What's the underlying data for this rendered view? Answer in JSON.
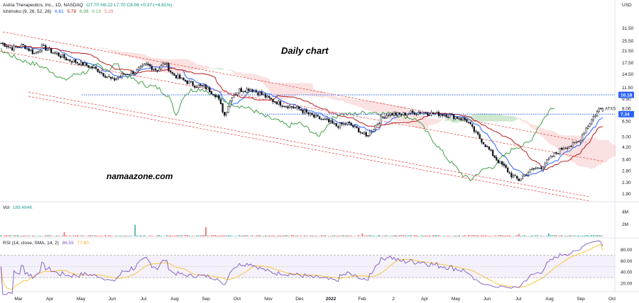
{
  "header": {
    "symbol_line": "Astria Therapeutics, Inc., 1D, NASDAQ",
    "ohlc_text": "O7.70 H8.22 L7.70 C8.06 +0.37 (+4.81%)",
    "ichimoku_label": "Ichimoku (9, 26, 52, 26)",
    "ichimoku_values": [
      "6.61",
      "5.78",
      "8.06",
      "6.19",
      "5.29"
    ],
    "vol_label": "Vol",
    "vol_value": "189.484K",
    "rsi_label": "RSI (14, close, SMA, 14, 2)",
    "rsi_values": [
      "86.55",
      "77.90"
    ]
  },
  "annotations": {
    "chart_title": "Daily chart",
    "watermark": "namaazone.com"
  },
  "colors": {
    "up": "#ffffff",
    "down": "#131722",
    "tenkan": "#2962ff",
    "kijun": "#b71c1c",
    "lagging": "#43a047",
    "cloud_bull": "#a5d6a7",
    "cloud_bear": "#f8c8c8",
    "channel": "#e53935",
    "level": "#2962ff",
    "rsi": "#7e57c2",
    "rsi_ma": "#fbc02d"
  },
  "chart_data": {
    "type": "candlestick",
    "currency": "USD",
    "price_axis": {
      "ticks": [
        "31.50",
        "25.50",
        "21.50",
        "17.50",
        "14.50",
        "11.50",
        "9.50",
        "8.06",
        "6.50",
        "5.00",
        "4.20",
        "3.40",
        "2.80",
        "2.30",
        "1.90"
      ],
      "scale": "log",
      "range": [
        1.7,
        40
      ]
    },
    "x_axis_labels": [
      "Mar",
      "Apr",
      "May",
      "Jun",
      "Jul",
      "Aug",
      "Sep",
      "Oct",
      "Nov",
      "Dec",
      "2022",
      "Feb",
      "2",
      "Apr",
      "May",
      "Jun",
      "Jul",
      "Aug",
      "Sep",
      "Oct"
    ],
    "price_labels": [
      {
        "text": "10.18",
        "value": 10.18
      },
      {
        "text": "ATXS",
        "value": 8.06
      },
      {
        "text": "7.34",
        "value": 7.34
      }
    ],
    "horizontal_levels": [
      10.18,
      7.34
    ],
    "price_path": [
      [
        0,
        24.5
      ],
      [
        6,
        22.5
      ],
      [
        12,
        23.5
      ],
      [
        18,
        20.5
      ],
      [
        22,
        23
      ],
      [
        28,
        21
      ],
      [
        36,
        18.5
      ],
      [
        45,
        17.0
      ],
      [
        52,
        15.5
      ],
      [
        60,
        13.0
      ],
      [
        66,
        14.5
      ],
      [
        72,
        15.0
      ],
      [
        78,
        17.0
      ],
      [
        84,
        15.5
      ],
      [
        88,
        17.5
      ],
      [
        92,
        14.5
      ],
      [
        98,
        13.0
      ],
      [
        104,
        12.0
      ],
      [
        110,
        11.5
      ],
      [
        116,
        10.0
      ],
      [
        120,
        7.2
      ],
      [
        124,
        10.0
      ],
      [
        128,
        11.0
      ],
      [
        134,
        11.3
      ],
      [
        140,
        10.2
      ],
      [
        146,
        9.2
      ],
      [
        152,
        8.6
      ],
      [
        160,
        8.0
      ],
      [
        168,
        7.0
      ],
      [
        174,
        6.6
      ],
      [
        180,
        6.0
      ],
      [
        186,
        6.3
      ],
      [
        192,
        5.6
      ],
      [
        196,
        5.0
      ],
      [
        200,
        5.8
      ],
      [
        204,
        6.8
      ],
      [
        208,
        7.4
      ],
      [
        214,
        7.3
      ],
      [
        220,
        7.5
      ],
      [
        226,
        7.6
      ],
      [
        232,
        7.4
      ],
      [
        238,
        7.3
      ],
      [
        244,
        7.0
      ],
      [
        250,
        6.6
      ],
      [
        254,
        5.5
      ],
      [
        258,
        4.7
      ],
      [
        262,
        4.0
      ],
      [
        266,
        3.4
      ],
      [
        270,
        3.0
      ],
      [
        274,
        2.6
      ],
      [
        278,
        2.4
      ],
      [
        282,
        2.7
      ],
      [
        286,
        2.9
      ],
      [
        290,
        3.0
      ],
      [
        296,
        3.6
      ],
      [
        302,
        4.2
      ],
      [
        306,
        4.3
      ],
      [
        310,
        4.6
      ],
      [
        314,
        5.8
      ],
      [
        318,
        7.0
      ],
      [
        321,
        8.0
      ],
      [
        323,
        8.06
      ]
    ],
    "volume_spikes_M": [
      [
        34,
        0.7
      ],
      [
        72,
        1.9
      ],
      [
        110,
        1.5
      ],
      [
        194,
        0.5
      ],
      [
        278,
        0.4
      ],
      [
        294,
        0.5
      ]
    ],
    "volume_ticks": [
      "4M",
      "2M"
    ],
    "rsi_ticks": [
      "80.00",
      "60.00",
      "40.00",
      "20.00"
    ],
    "rsi_levels": [
      70,
      30
    ],
    "rsi_last": 86.55,
    "rsi_ma_last": 77.9
  }
}
